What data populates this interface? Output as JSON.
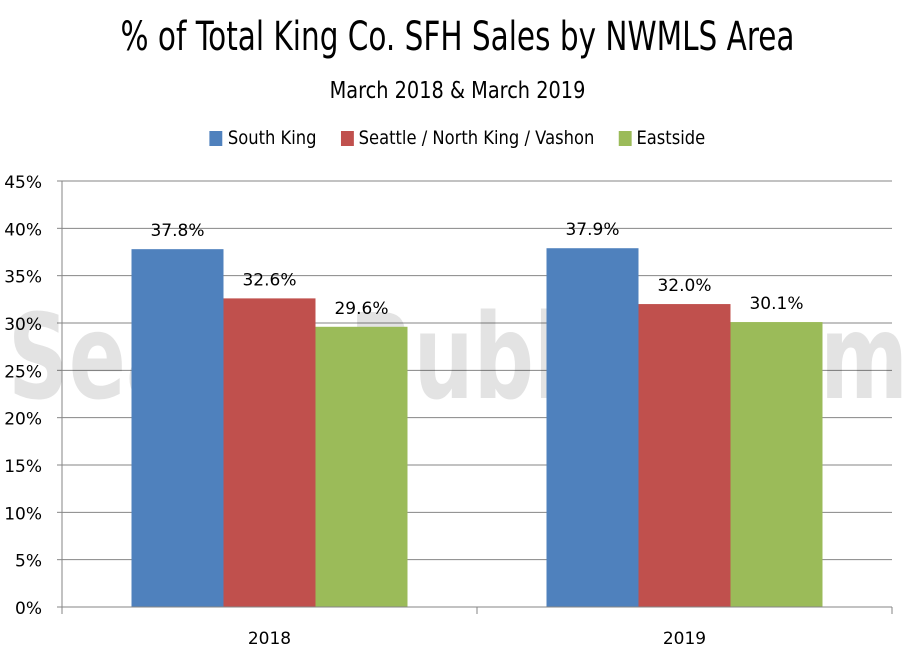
{
  "chart_data": {
    "type": "bar",
    "title": "% of Total King Co. SFH Sales by NWMLS Area",
    "subtitle": "March 2018 & March 2019",
    "categories": [
      "2018",
      "2019"
    ],
    "series": [
      {
        "name": "South King",
        "color": "#4f81bd",
        "values": [
          37.8,
          37.9
        ],
        "labels": [
          "37.8%",
          "37.9%"
        ]
      },
      {
        "name": "Seattle / North King / Vashon",
        "color": "#c0504d",
        "values": [
          32.6,
          32.0
        ],
        "labels": [
          "32.6%",
          "32.0%"
        ]
      },
      {
        "name": "Eastside",
        "color": "#9bbb59",
        "values": [
          29.6,
          30.1
        ],
        "labels": [
          "29.6%",
          "30.1%"
        ]
      }
    ],
    "ylim": [
      0,
      45
    ],
    "yticks": [
      0,
      5,
      10,
      15,
      20,
      25,
      30,
      35,
      40,
      45
    ],
    "ytick_labels": [
      "0%",
      "5%",
      "10%",
      "15%",
      "20%",
      "25%",
      "30%",
      "35%",
      "40%",
      "45%"
    ],
    "grid": true,
    "legend_position": "top",
    "watermark": "SeattleBubble.com"
  }
}
